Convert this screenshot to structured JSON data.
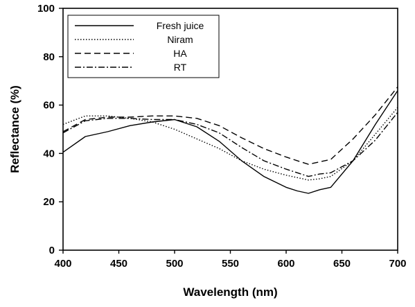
{
  "chart_data": {
    "type": "line",
    "title": "",
    "xlabel": "Wavelength (nm)",
    "ylabel": "Reflectance (%)",
    "xlim": [
      400,
      700
    ],
    "ylim": [
      0,
      100
    ],
    "xticks": [
      400,
      450,
      500,
      550,
      600,
      650,
      700
    ],
    "yticks": [
      0,
      20,
      40,
      60,
      80,
      100
    ],
    "grid": false,
    "legend_position": "top-left",
    "x": [
      400,
      420,
      440,
      460,
      480,
      500,
      520,
      540,
      560,
      580,
      600,
      610,
      620,
      630,
      640,
      660,
      680,
      700
    ],
    "series": [
      {
        "name": "Fresh juice",
        "style": "solid",
        "values": [
          40.5,
          47,
          49,
          51.5,
          53,
          54,
          51,
          45,
          37,
          30.5,
          26,
          24.5,
          23.5,
          25,
          26,
          37,
          52,
          66
        ]
      },
      {
        "name": "Niram",
        "style": "dotted",
        "values": [
          52,
          55.5,
          55.5,
          54.5,
          53,
          50,
          46,
          42,
          37,
          33.5,
          31,
          30,
          29,
          29.5,
          30.5,
          37,
          48,
          59
        ]
      },
      {
        "name": "HA",
        "style": "dashed",
        "values": [
          49,
          54,
          55,
          55,
          55.5,
          55.5,
          54.5,
          51.5,
          46.5,
          42,
          38.5,
          37,
          35.5,
          36.5,
          37.5,
          46,
          56,
          67.5
        ]
      },
      {
        "name": "RT",
        "style": "dashdot",
        "values": [
          48.5,
          53.5,
          54.5,
          54.5,
          54,
          54,
          52,
          48.5,
          42.5,
          37,
          33.5,
          32,
          30.5,
          31.5,
          32,
          37,
          45.5,
          57
        ]
      }
    ]
  }
}
